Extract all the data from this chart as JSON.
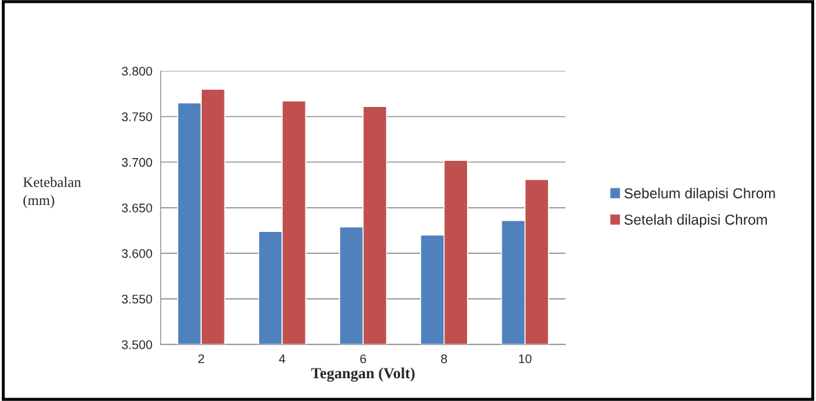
{
  "chart_data": {
    "type": "bar",
    "xlabel": "Tegangan (Volt)",
    "ylabel": "Ketebalan\n(mm)",
    "categories": [
      "2",
      "4",
      "6",
      "8",
      "10"
    ],
    "series": [
      {
        "name": "Sebelum dilapisi Chrom",
        "color": "#4f81bd",
        "values": [
          3.765,
          3.624,
          3.629,
          3.62,
          3.636
        ]
      },
      {
        "name": "Setelah dilapisi Chrom",
        "color": "#c0504d",
        "values": [
          3.78,
          3.767,
          3.761,
          3.702,
          3.681
        ]
      }
    ],
    "ylim": [
      3.5,
      3.8
    ],
    "yticks": [
      {
        "value": 3.5,
        "label": "3.500"
      },
      {
        "value": 3.55,
        "label": "3.550"
      },
      {
        "value": 3.6,
        "label": "3.600"
      },
      {
        "value": 3.65,
        "label": "3.650"
      },
      {
        "value": 3.7,
        "label": "3.700"
      },
      {
        "value": 3.75,
        "label": "3.750"
      },
      {
        "value": 3.8,
        "label": "3.800"
      }
    ],
    "grid": "y",
    "legend": "right"
  }
}
